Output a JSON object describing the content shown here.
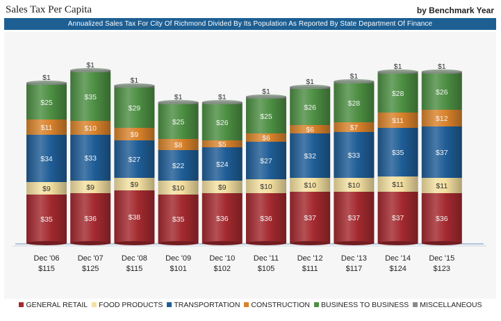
{
  "header": {
    "title": "Sales Tax Per Capita",
    "right_label": "by Benchmark Year",
    "banner": "Annualized Sales Tax For City Of Richmond Divided By Its Population As Reported By State Department Of Finance"
  },
  "chart_data": {
    "type": "bar",
    "stacked": true,
    "categories": [
      "Dec '06",
      "Dec '07",
      "Dec '08",
      "Dec '09",
      "Dec '10",
      "Dec '11",
      "Dec '12",
      "Dec '13",
      "Dec '14",
      "Dec '15"
    ],
    "totals": [
      "$115",
      "$125",
      "$115",
      "$101",
      "$102",
      "$105",
      "$111",
      "$117",
      "$124",
      "$123"
    ],
    "series": [
      {
        "name": "GENERAL RETAIL",
        "color": "#a32a2f",
        "values": [
          35,
          36,
          38,
          35,
          36,
          36,
          37,
          37,
          37,
          36
        ]
      },
      {
        "name": "FOOD PRODUCTS",
        "color": "#f3dfa0",
        "values": [
          9,
          9,
          9,
          10,
          9,
          10,
          10,
          10,
          11,
          11
        ]
      },
      {
        "name": "TRANSPORTATION",
        "color": "#1f5d96",
        "values": [
          34,
          33,
          27,
          22,
          24,
          27,
          32,
          33,
          35,
          37
        ]
      },
      {
        "name": "CONSTRUCTION",
        "color": "#d9822b",
        "values": [
          11,
          10,
          9,
          8,
          5,
          6,
          6,
          7,
          11,
          12
        ]
      },
      {
        "name": "BUSINESS TO BUSINESS",
        "color": "#4d8f43",
        "values": [
          25,
          35,
          29,
          25,
          26,
          25,
          26,
          28,
          28,
          26
        ]
      },
      {
        "name": "MISCELLANEOUS",
        "color": "#8a8a8a",
        "values": [
          1,
          1,
          1,
          1,
          1,
          1,
          1,
          1,
          1,
          1
        ]
      }
    ],
    "value_prefix": "$",
    "legend": "bottom",
    "grid": false
  }
}
